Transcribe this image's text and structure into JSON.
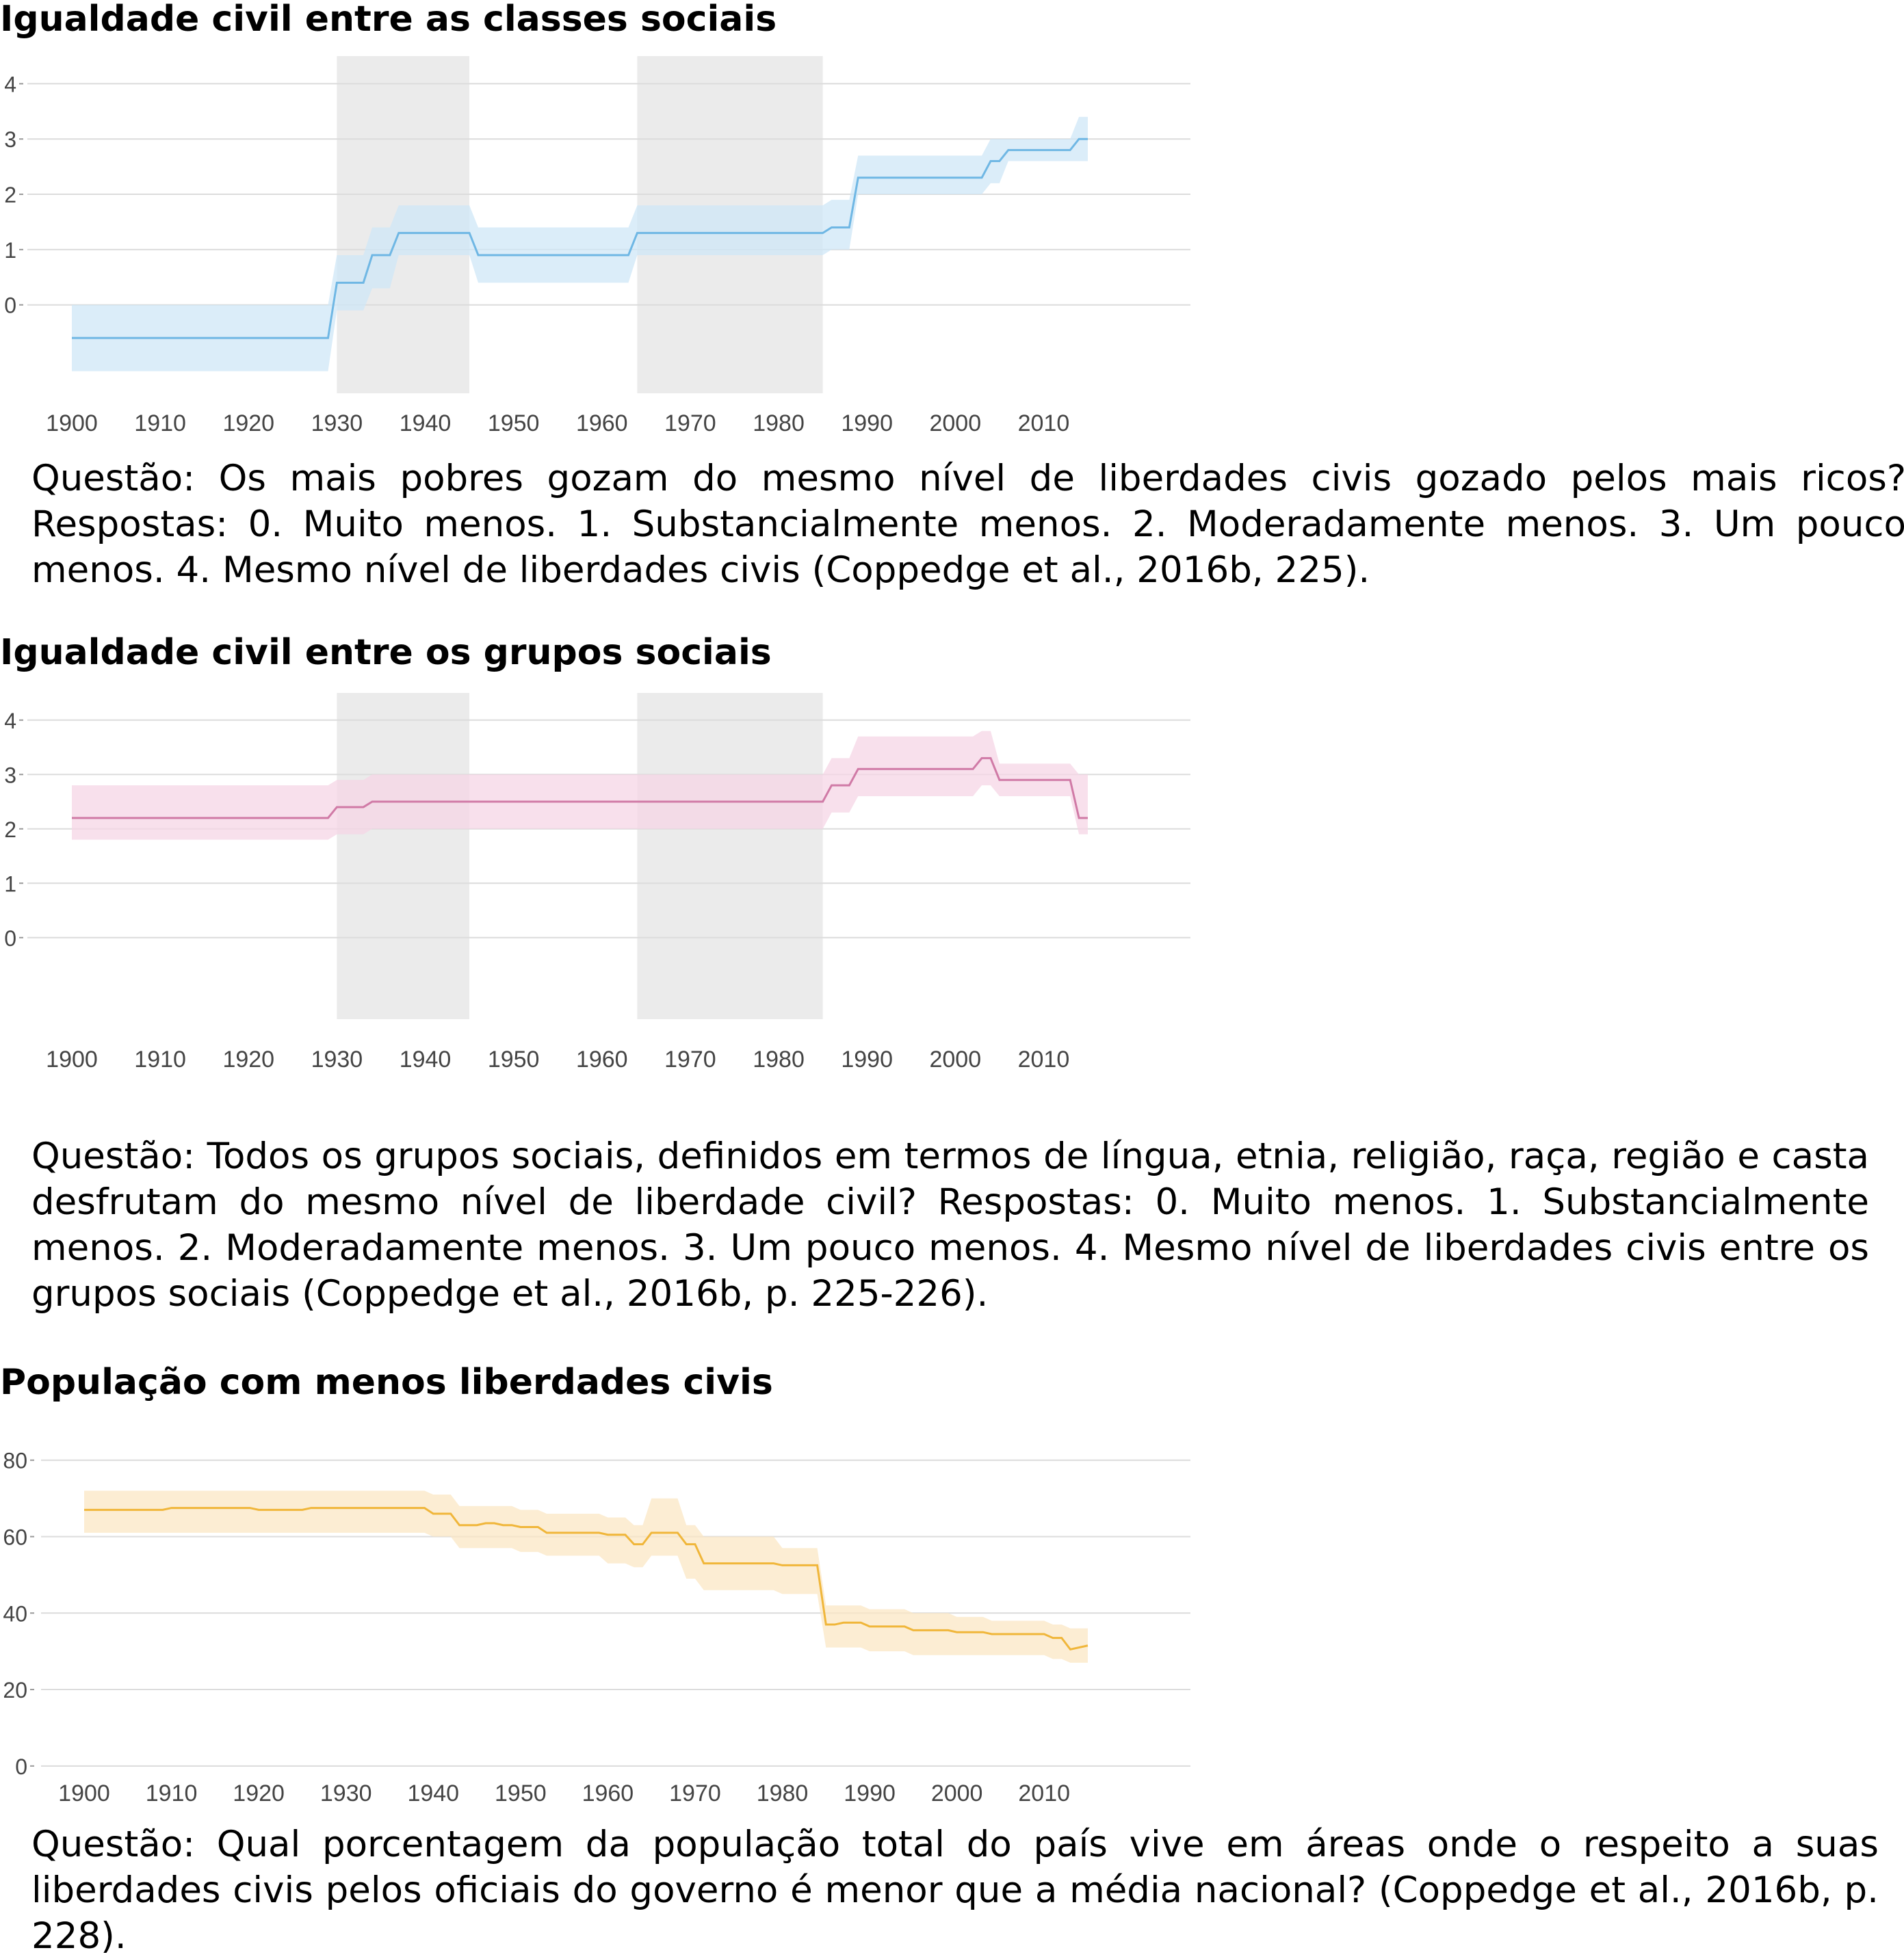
{
  "sections": [
    {
      "title": "Igualdade civil entre as classes sociais",
      "caption": "Questão: Os mais pobres gozam do mesmo nível de liberdades civis gozado pelos mais ricos? Respostas: 0. Muito menos. 1. Substancialmente menos. 2. Moderadamente menos. 3. Um pouco menos. 4. Mesmo nível de liberdades civis (Coppedge et al., 2016b, 225)."
    },
    {
      "title": "Igualdade civil entre os grupos sociais",
      "caption": "Questão: Todos os grupos sociais, definidos em termos de língua, etnia, religião, raça, região e casta desfrutam do mesmo nível de liberdade civil? Respostas: 0. Muito menos. 1. Substancialmente menos. 2. Moderadamente menos. 3. Um pouco menos. 4. Mesmo nível de liberdades civis entre os grupos sociais (Coppedge et al., 2016b, p. 225-226)."
    },
    {
      "title": "População com menos liberdades civis",
      "caption": "Questão: Qual porcentagem da população total do país vive em áreas onde o respeito a suas liberdades civis pelos oficiais do governo é menor que a média nacional? (Coppedge et al., 2016b, p. 228)."
    }
  ],
  "chart_data": [
    {
      "type": "line",
      "title": "Igualdade civil entre as classes sociais",
      "xlabel": "",
      "ylabel": "",
      "xlim": [
        1900,
        2015
      ],
      "xticks": [
        1900,
        1910,
        1920,
        1930,
        1940,
        1950,
        1960,
        1970,
        1980,
        1990,
        2000,
        2010
      ],
      "yticks": [
        0,
        1,
        2,
        3,
        4
      ],
      "ylim": [
        -1.6,
        4.5
      ],
      "grid": true,
      "shaded_periods": [
        [
          1930,
          1945
        ],
        [
          1964,
          1985
        ]
      ],
      "color": "#6fb7e4",
      "band_color": "#cfe7f7",
      "series": [
        {
          "x": [
            1900,
            1929,
            1930,
            1933,
            1934,
            1936,
            1937,
            1945,
            1946,
            1963,
            1964,
            1985,
            1986,
            1988,
            1989,
            2003,
            2004,
            2005,
            2006,
            2013,
            2014,
            2015
          ],
          "y": [
            -0.6,
            -0.6,
            0.4,
            0.4,
            0.9,
            0.9,
            1.3,
            1.3,
            0.9,
            0.9,
            1.3,
            1.3,
            1.4,
            1.4,
            2.3,
            2.3,
            2.6,
            2.6,
            2.8,
            2.8,
            3.0,
            3.0
          ],
          "lower": [
            -1.2,
            -1.2,
            -0.1,
            -0.1,
            0.3,
            0.3,
            0.9,
            0.9,
            0.4,
            0.4,
            0.9,
            0.9,
            1.0,
            1.0,
            2.0,
            2.0,
            2.2,
            2.2,
            2.6,
            2.6,
            2.6,
            2.6
          ],
          "upper": [
            0.0,
            0.0,
            0.9,
            0.9,
            1.4,
            1.4,
            1.8,
            1.8,
            1.4,
            1.4,
            1.8,
            1.8,
            1.9,
            1.9,
            2.7,
            2.7,
            3.0,
            3.0,
            3.0,
            3.0,
            3.4,
            3.4
          ]
        }
      ]
    },
    {
      "type": "line",
      "title": "Igualdade civil entre os grupos sociais",
      "xlabel": "",
      "ylabel": "",
      "xlim": [
        1900,
        2015
      ],
      "xticks": [
        1900,
        1910,
        1920,
        1930,
        1940,
        1950,
        1960,
        1970,
        1980,
        1990,
        2000,
        2010
      ],
      "yticks": [
        0,
        1,
        2,
        3,
        4
      ],
      "ylim": [
        -1.5,
        4.5
      ],
      "grid": true,
      "shaded_periods": [
        [
          1930,
          1945
        ],
        [
          1964,
          1985
        ]
      ],
      "color": "#d07aa6",
      "band_color": "#f5d5e6",
      "series": [
        {
          "x": [
            1900,
            1929,
            1930,
            1933,
            1934,
            1985,
            1986,
            1988,
            1989,
            2002,
            2003,
            2004,
            2005,
            2013,
            2014,
            2015
          ],
          "y": [
            2.2,
            2.2,
            2.4,
            2.4,
            2.5,
            2.5,
            2.8,
            2.8,
            3.1,
            3.1,
            3.3,
            3.3,
            2.9,
            2.9,
            2.2,
            2.2
          ],
          "lower": [
            1.8,
            1.8,
            1.9,
            1.9,
            2.0,
            2.0,
            2.3,
            2.3,
            2.6,
            2.6,
            2.8,
            2.8,
            2.6,
            2.6,
            1.9,
            1.9
          ],
          "upper": [
            2.8,
            2.8,
            2.9,
            2.9,
            3.0,
            3.0,
            3.3,
            3.3,
            3.7,
            3.7,
            3.8,
            3.8,
            3.2,
            3.2,
            3.0,
            3.0
          ]
        }
      ]
    },
    {
      "type": "line",
      "title": "População com menos liberdades civis",
      "xlabel": "",
      "ylabel": "",
      "xlim": [
        1900,
        2015
      ],
      "xticks": [
        1900,
        1910,
        1920,
        1930,
        1940,
        1950,
        1960,
        1970,
        1980,
        1990,
        2000,
        2010
      ],
      "yticks": [
        0,
        20,
        40,
        60,
        80
      ],
      "ylim": [
        -2,
        88
      ],
      "grid": true,
      "shaded_periods": [],
      "color": "#f0b63a",
      "band_color": "#fbe7c4",
      "series": [
        {
          "x": [
            1900,
            1909,
            1910,
            1919,
            1920,
            1925,
            1926,
            1939,
            1940,
            1942,
            1943,
            1945,
            1946,
            1947,
            1948,
            1949,
            1950,
            1952,
            1953,
            1959,
            1960,
            1962,
            1963,
            1964,
            1965,
            1968,
            1969,
            1970,
            1971,
            1979,
            1980,
            1984,
            1985,
            1986,
            1987,
            1989,
            1990,
            1994,
            1995,
            1999,
            2000,
            2003,
            2004,
            2010,
            2011,
            2012,
            2013,
            2015
          ],
          "y": [
            67,
            67,
            67.5,
            67.5,
            67,
            67,
            67.5,
            67.5,
            66,
            66,
            63,
            63,
            63.5,
            63.5,
            63,
            63,
            62.5,
            62.5,
            61,
            61,
            60.5,
            60.5,
            58,
            58,
            61,
            61,
            58,
            58,
            53,
            53,
            52.5,
            52.5,
            37,
            37,
            37.5,
            37.5,
            36.5,
            36.5,
            35.5,
            35.5,
            35,
            35,
            34.5,
            34.5,
            33.5,
            33.5,
            30.5,
            31.5
          ],
          "lower": [
            61,
            61,
            61,
            61,
            61,
            61,
            61,
            61,
            60,
            60,
            57,
            57,
            57,
            57,
            57,
            57,
            56,
            56,
            55,
            55,
            53,
            53,
            52,
            52,
            55,
            55,
            49,
            49,
            46,
            46,
            45,
            45,
            31,
            31,
            31,
            31,
            30,
            30,
            29,
            29,
            29,
            29,
            29,
            29,
            28,
            28,
            27,
            27
          ],
          "upper": [
            72,
            72,
            72,
            72,
            72,
            72,
            72,
            72,
            71,
            71,
            68,
            68,
            68,
            68,
            68,
            68,
            67,
            67,
            66,
            66,
            65,
            65,
            63,
            63,
            70,
            70,
            63,
            63,
            60,
            60,
            57,
            57,
            42,
            42,
            42,
            42,
            41,
            41,
            40,
            40,
            39,
            39,
            38,
            38,
            37,
            37,
            36,
            36
          ]
        }
      ]
    }
  ]
}
